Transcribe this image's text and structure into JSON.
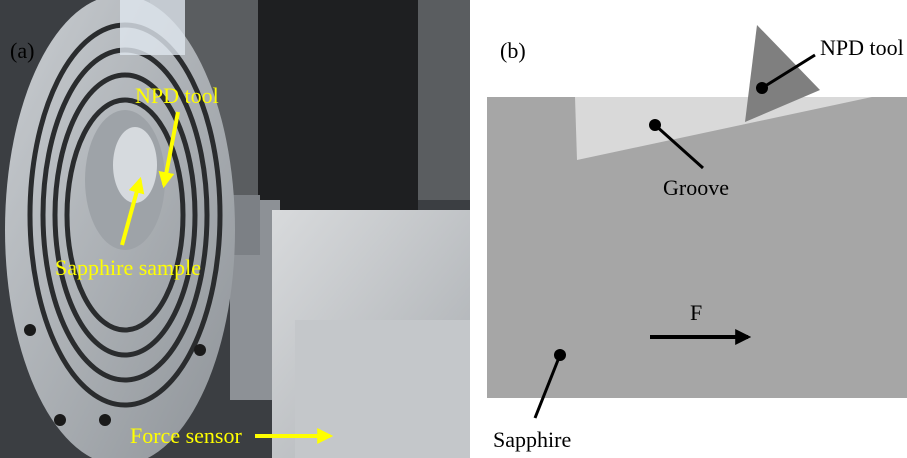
{
  "panel_a": {
    "label": "(a)",
    "tool_label": "NPD tool",
    "sample_label": "Sapphire sample",
    "sensor_label": "Force sensor"
  },
  "panel_b": {
    "label": "(b)",
    "tool_label": "NPD tool",
    "groove_label": "Groove",
    "force_label": "F",
    "material_label": "Sapphire"
  }
}
